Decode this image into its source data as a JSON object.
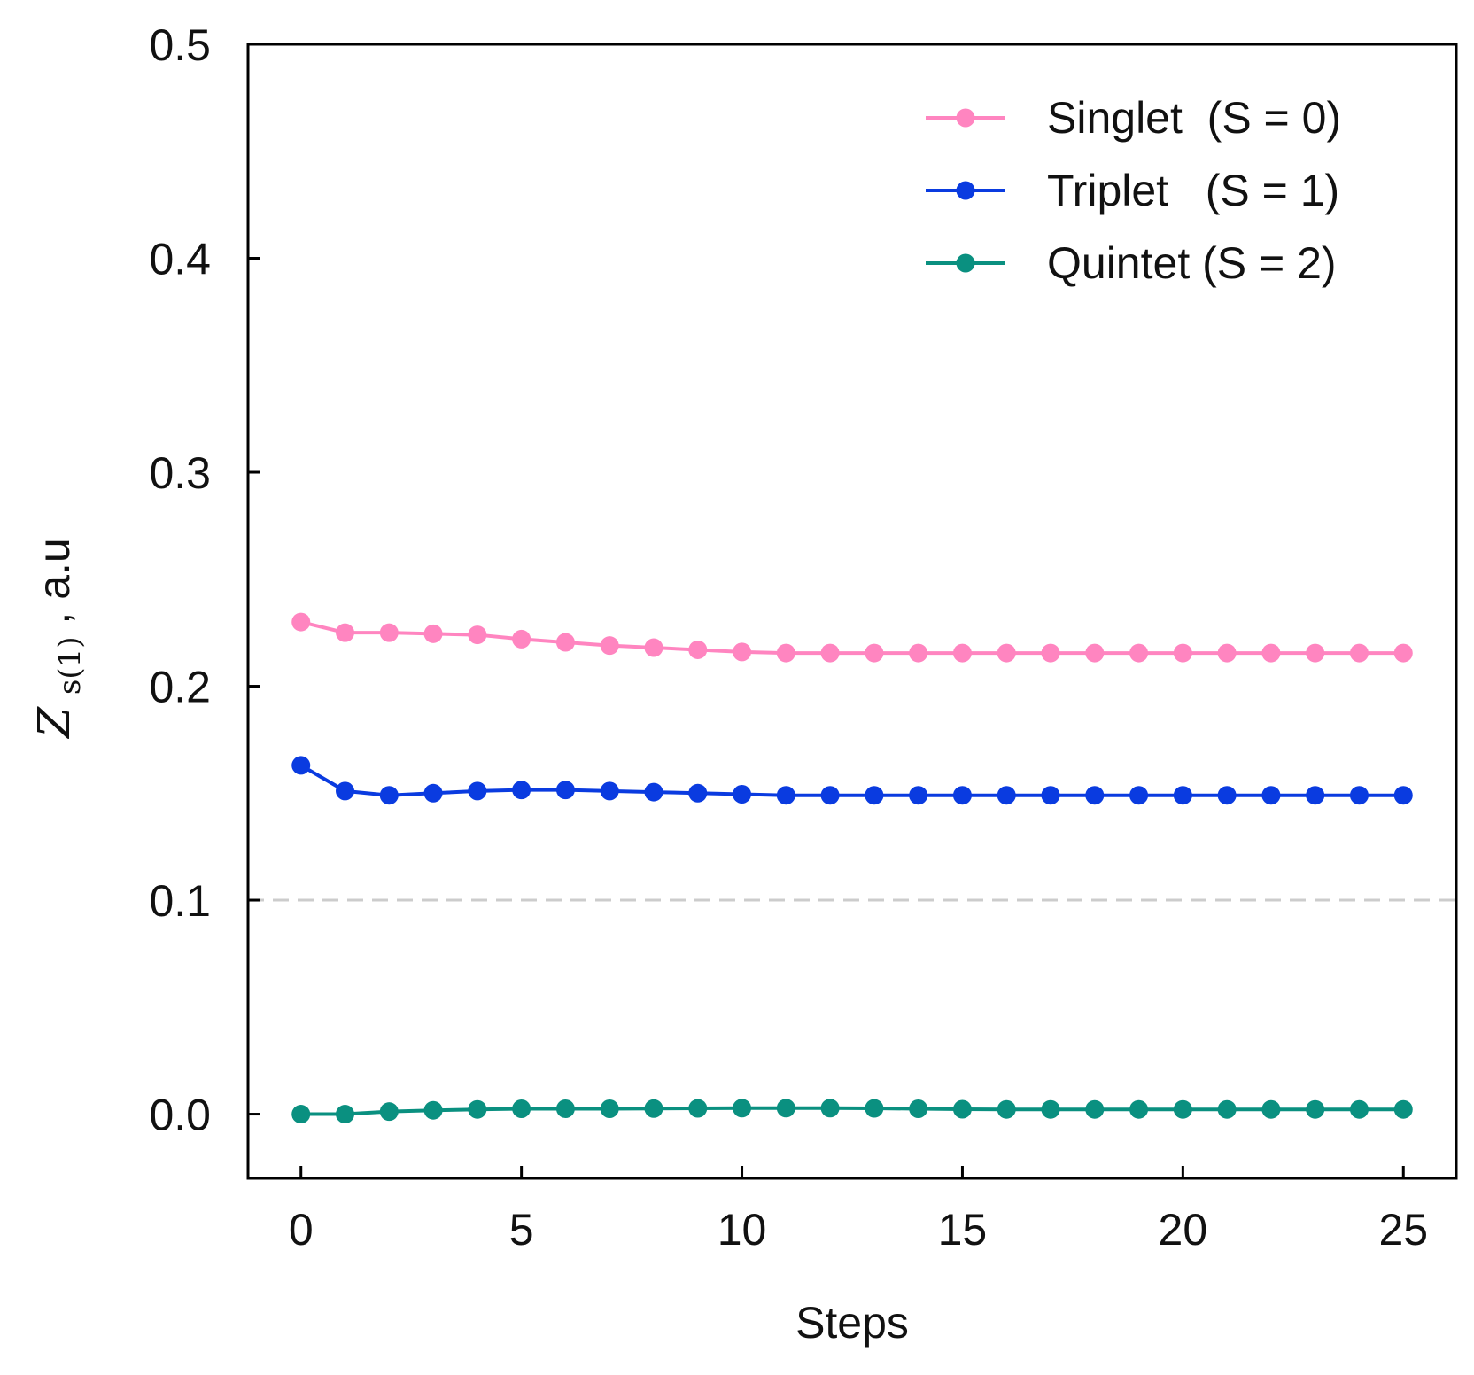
{
  "chart_data": {
    "type": "line",
    "xlabel": "Steps",
    "ylabel": {
      "main": "Z",
      "subscript": "s(1)",
      "suffix": ", a.u"
    },
    "xlim": [
      -1.2,
      26.2
    ],
    "ylim": [
      -0.03,
      0.5
    ],
    "x_ticks": [
      0,
      5,
      10,
      15,
      20,
      25
    ],
    "x_tick_labels": [
      "0",
      "5",
      "10",
      "15",
      "20",
      "25"
    ],
    "y_ticks": [
      0.0,
      0.1,
      0.2,
      0.3,
      0.4,
      0.5
    ],
    "y_tick_labels": [
      "0.0",
      "0.1",
      "0.2",
      "0.3",
      "0.4",
      "0.5"
    ],
    "reference_line": {
      "y": 0.1,
      "style": "dashed",
      "color": "#cccccc"
    },
    "grid": false,
    "legend_position": "top-right",
    "x": [
      0,
      1,
      2,
      3,
      4,
      5,
      6,
      7,
      8,
      9,
      10,
      11,
      12,
      13,
      14,
      15,
      16,
      17,
      18,
      19,
      20,
      21,
      22,
      23,
      24,
      25
    ],
    "series": [
      {
        "name": "Singlet  (S = 0)",
        "color": "#ff85c0",
        "values": [
          0.23,
          0.225,
          0.225,
          0.2245,
          0.224,
          0.222,
          0.2205,
          0.219,
          0.218,
          0.217,
          0.216,
          0.2155,
          0.2155,
          0.2155,
          0.2155,
          0.2155,
          0.2155,
          0.2155,
          0.2155,
          0.2155,
          0.2155,
          0.2155,
          0.2155,
          0.2155,
          0.2155,
          0.2155
        ]
      },
      {
        "name": "Triplet   (S = 1)",
        "color": "#0a3be0",
        "values": [
          0.163,
          0.151,
          0.149,
          0.15,
          0.151,
          0.1515,
          0.1515,
          0.151,
          0.1505,
          0.15,
          0.1495,
          0.149,
          0.149,
          0.149,
          0.149,
          0.149,
          0.149,
          0.149,
          0.149,
          0.149,
          0.149,
          0.149,
          0.149,
          0.149,
          0.149,
          0.149
        ]
      },
      {
        "name": "Quintet (S = 2)",
        "color": "#0a9080",
        "values": [
          0.0,
          0.0,
          0.0012,
          0.0018,
          0.0022,
          0.0025,
          0.0025,
          0.0025,
          0.0026,
          0.0027,
          0.0028,
          0.0028,
          0.0028,
          0.0027,
          0.0025,
          0.0023,
          0.0022,
          0.0022,
          0.0022,
          0.0022,
          0.0022,
          0.0022,
          0.0022,
          0.0022,
          0.0022,
          0.0022
        ]
      }
    ]
  }
}
